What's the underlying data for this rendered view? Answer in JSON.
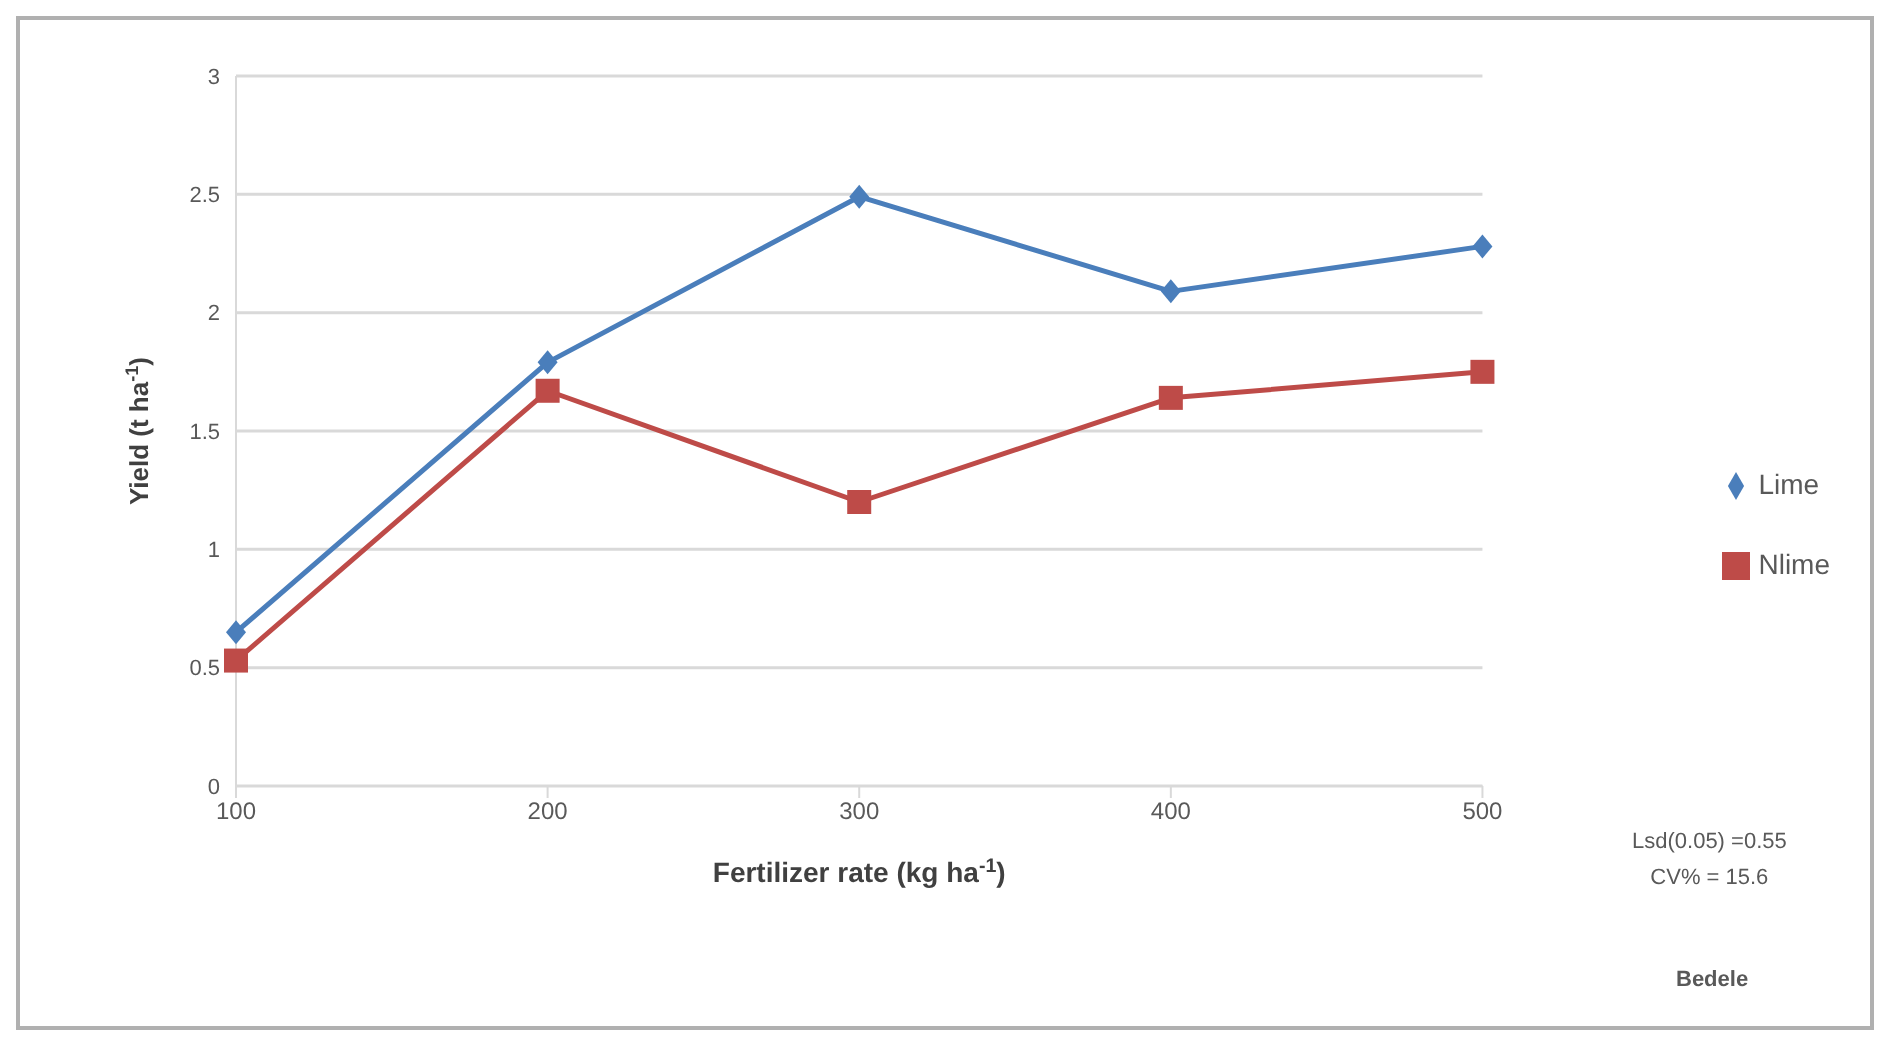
{
  "chart_data": {
    "type": "line",
    "xlabel": "Fertilizer rate (kg ha$^{-1}$)",
    "ylabel": "Yield (t ha$^{-1}$)",
    "categories": [
      "100",
      "200",
      "300",
      "400",
      "500"
    ],
    "series": [
      {
        "name": "Lime",
        "color": "#4a7ebb",
        "values": [
          0.65,
          1.79,
          2.49,
          2.09,
          2.28
        ],
        "marker": "diamond"
      },
      {
        "name": "Nlime",
        "color": "#be4b48",
        "values": [
          0.53,
          1.67,
          1.2,
          1.64,
          1.75
        ],
        "marker": "square"
      }
    ],
    "ylim": [
      0,
      3
    ],
    "yticks": [
      0,
      0.5,
      1,
      1.5,
      2,
      2.5,
      3
    ],
    "grid": "y",
    "legend": "right",
    "annotations": [
      "Lsd(0.05) =0.55",
      "CV% = 15.6",
      "Bedele"
    ]
  }
}
